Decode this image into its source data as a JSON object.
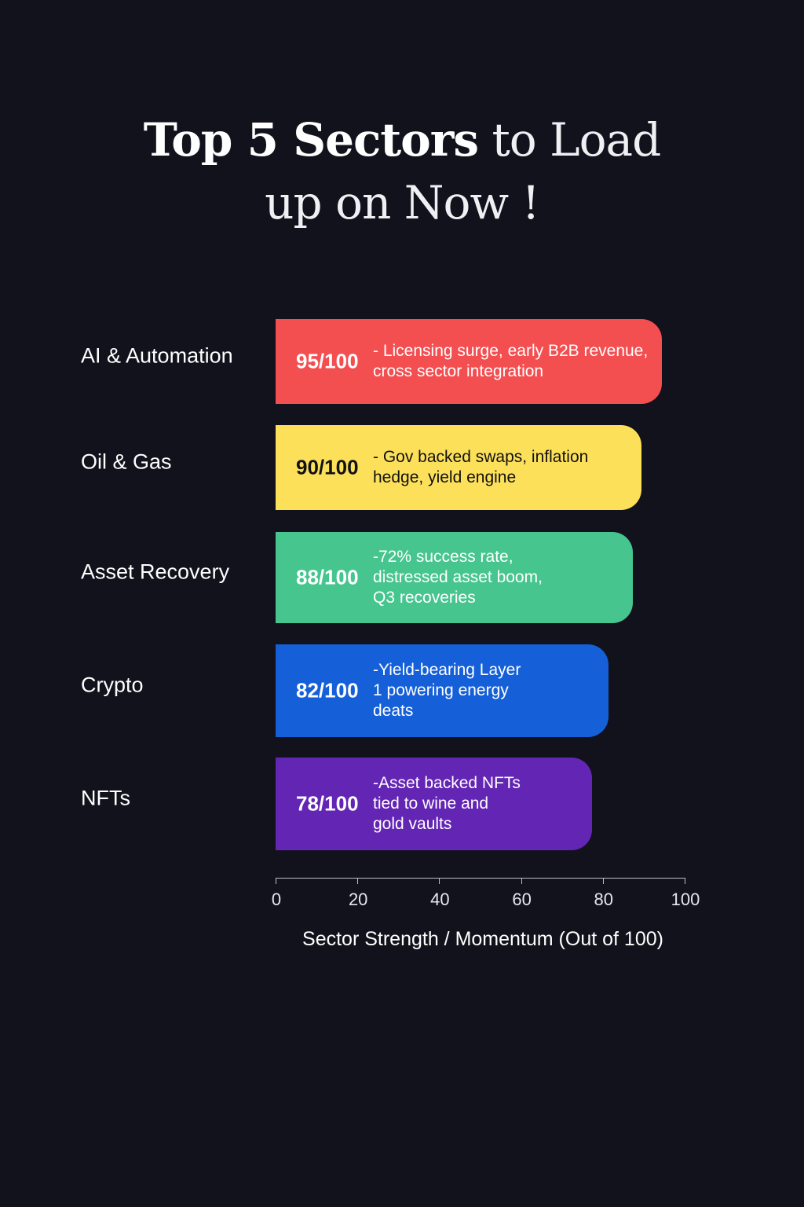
{
  "chart_data": {
    "type": "bar",
    "orientation": "horizontal",
    "title": "Top 5 Sectors to Load up on Now !",
    "title_parts": {
      "bold": "Top 5 Sectors",
      "rest_line1": " to Load",
      "line2": "up on Now !"
    },
    "categories": [
      "AI & Automation",
      "Oil & Gas",
      "Asset Recovery",
      "Crypto",
      "NFTs"
    ],
    "values": [
      95,
      90,
      88,
      82,
      78
    ],
    "score_labels": [
      "95/100",
      "90/100",
      "88/100",
      "82/100",
      "78/100"
    ],
    "notes": [
      "- Licensing surge, early B2B revenue,\ncross sector integration",
      "- Gov backed swaps, inflation\nhedge, yield engine",
      "-72% success rate,\ndistressed asset boom,\nQ3 recoveries",
      "-Yield-bearing Layer\n1 powering energy\ndeats",
      "-Asset backed NFTs\ntied to wine and\ngold vaults"
    ],
    "bar_colors": [
      "#f34e50",
      "#fde05a",
      "#47c58e",
      "#1560d8",
      "#6325b4"
    ],
    "text_colors": [
      "#ffffff",
      "#111111",
      "#ffffff",
      "#ffffff",
      "#ffffff"
    ],
    "xlabel": "Sector Strength / Momentum (Out of 100)",
    "ylabel": "",
    "xlim": [
      0,
      100
    ],
    "xticks": [
      "0",
      "20",
      "40",
      "60",
      "80",
      "100"
    ],
    "grid": false,
    "legend": "none"
  }
}
